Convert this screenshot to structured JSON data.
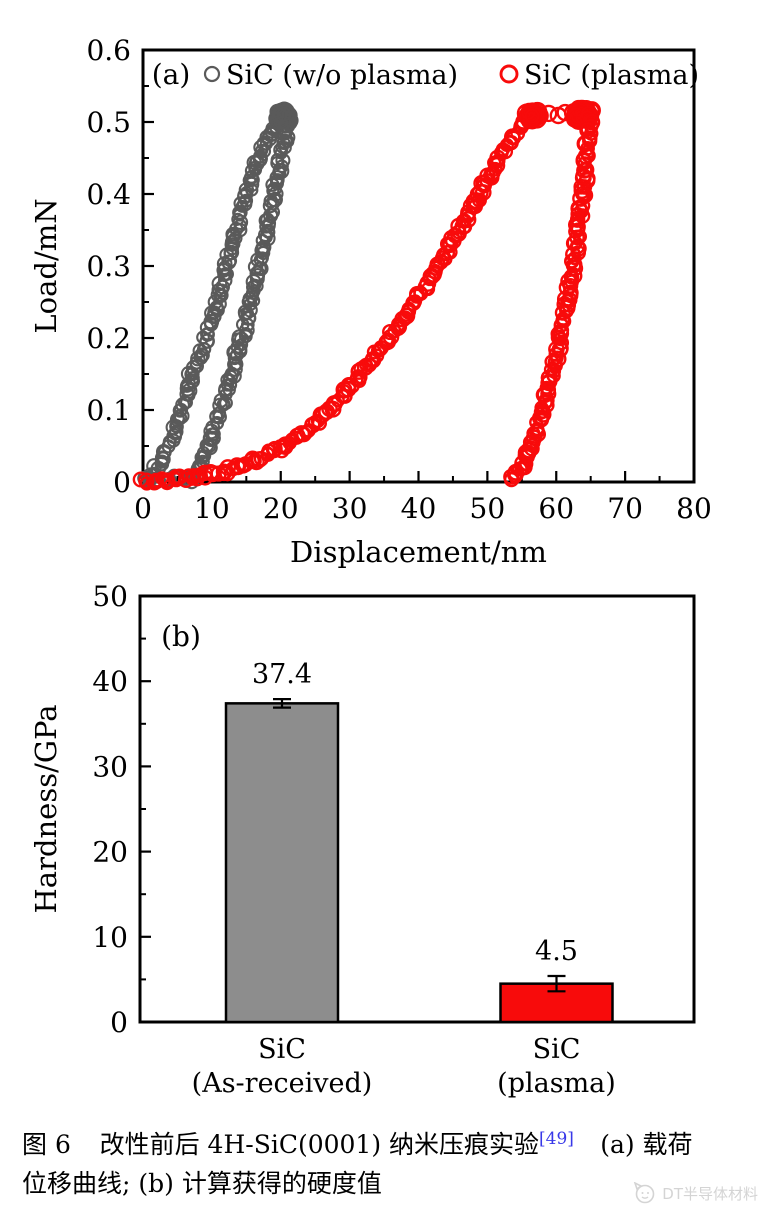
{
  "chart_data": [
    {
      "type": "scatter",
      "panel_label": "(a)",
      "xlabel": "Displacement/nm",
      "ylabel": "Load/mN",
      "xlim": [
        0,
        80
      ],
      "ylim": [
        0,
        0.6
      ],
      "grid": false,
      "legend_position": "top-inside",
      "x_axis": {
        "major_ticks": [
          0,
          10,
          20,
          30,
          40,
          50,
          60,
          70,
          80
        ],
        "labels": [
          "0",
          "10",
          "20",
          "30",
          "40",
          "50",
          "60",
          "70",
          "80"
        ],
        "minor_step": 5
      },
      "y_axis": {
        "major_ticks": [
          0,
          0.1,
          0.2,
          0.3,
          0.4,
          0.5,
          0.6
        ],
        "labels": [
          "0",
          "0.1",
          "0.2",
          "0.3",
          "0.4",
          "0.5",
          "0.6"
        ],
        "minor_step": 0.05
      },
      "series": [
        {
          "name": "SiC (w/o plasma)",
          "color": "#5a5a5a",
          "marker": "open-circle",
          "marker_r": 6,
          "marker_stroke": 2.1,
          "branches": [
            {
              "kind": "path",
              "label": "surface-approach",
              "spacing": 5.5,
              "jitter": 2.2,
              "points": [
                [
                  0.5,
                  0.003
                ],
                [
                  3,
                  0.005
                ],
                [
                  5.5,
                  0.005
                ],
                [
                  8,
                  0.007
                ]
              ]
            },
            {
              "kind": "path",
              "label": "loading",
              "spacing": 2.6,
              "jitter": 3.1,
              "points": [
                [
                  0.4,
                  0.002
                ],
                [
                  1.5,
                  0.012
                ],
                [
                  2.5,
                  0.025
                ],
                [
                  3.5,
                  0.045
                ],
                [
                  4.5,
                  0.07
                ],
                [
                  5.5,
                  0.095
                ],
                [
                  6.3,
                  0.12
                ],
                [
                  7.2,
                  0.15
                ],
                [
                  8.2,
                  0.175
                ],
                [
                  9,
                  0.195
                ],
                [
                  9.8,
                  0.22
                ],
                [
                  10.8,
                  0.25
                ],
                [
                  11.7,
                  0.285
                ],
                [
                  12.6,
                  0.315
                ],
                [
                  13.6,
                  0.35
                ],
                [
                  14.6,
                  0.385
                ],
                [
                  15.6,
                  0.415
                ],
                [
                  16.6,
                  0.445
                ],
                [
                  17.6,
                  0.47
                ],
                [
                  18.6,
                  0.49
                ],
                [
                  19.4,
                  0.503
                ]
              ]
            },
            {
              "kind": "path",
              "label": "unloading",
              "spacing": 2.6,
              "jitter": 3.1,
              "points": [
                [
                  21.2,
                  0.508
                ],
                [
                  20.6,
                  0.48
                ],
                [
                  20,
                  0.45
                ],
                [
                  19.4,
                  0.42
                ],
                [
                  18.7,
                  0.385
                ],
                [
                  18,
                  0.35
                ],
                [
                  17.2,
                  0.315
                ],
                [
                  16.4,
                  0.28
                ],
                [
                  15.5,
                  0.245
                ],
                [
                  14.6,
                  0.21
                ],
                [
                  13.7,
                  0.18
                ],
                [
                  12.8,
                  0.15
                ],
                [
                  11.9,
                  0.12
                ],
                [
                  11,
                  0.095
                ],
                [
                  10.2,
                  0.07
                ],
                [
                  9.4,
                  0.05
                ],
                [
                  8.7,
                  0.032
                ],
                [
                  8.1,
                  0.018
                ],
                [
                  7.6,
                  0.007
                ],
                [
                  7.2,
                  0.002
                ]
              ]
            },
            {
              "kind": "blob",
              "label": "peak-hold",
              "count": 75,
              "x": [
                19.2,
                21.7
              ],
              "y": [
                0.498,
                0.518
              ]
            }
          ],
          "peak_load_mN": 0.51,
          "max_displacement_nm": 21,
          "residual_displacement_nm": 7.5
        },
        {
          "name": "SiC (plasma)",
          "color": "#f80b0b",
          "marker": "open-circle",
          "marker_r": 6.4,
          "marker_stroke": 2.4,
          "branches": [
            {
              "kind": "path",
              "label": "loading",
              "spacing": 2.8,
              "jitter": 2.9,
              "points": [
                [
                  0,
                  0
                ],
                [
                  3,
                  0.002
                ],
                [
                  6,
                  0.005
                ],
                [
                  9,
                  0.009
                ],
                [
                  11,
                  0.013
                ],
                [
                  13,
                  0.018
                ],
                [
                  15,
                  0.025
                ],
                [
                  17,
                  0.033
                ],
                [
                  19,
                  0.042
                ],
                [
                  21,
                  0.053
                ],
                [
                  23,
                  0.066
                ],
                [
                  25,
                  0.082
                ],
                [
                  27,
                  0.1
                ],
                [
                  29,
                  0.12
                ],
                [
                  31,
                  0.142
                ],
                [
                  33,
                  0.165
                ],
                [
                  35,
                  0.19
                ],
                [
                  37,
                  0.215
                ],
                [
                  39,
                  0.243
                ],
                [
                  41,
                  0.272
                ],
                [
                  43,
                  0.303
                ],
                [
                  45,
                  0.335
                ],
                [
                  47,
                  0.368
                ],
                [
                  49,
                  0.402
                ],
                [
                  51,
                  0.437
                ],
                [
                  53,
                  0.47
                ],
                [
                  54.5,
                  0.49
                ],
                [
                  56,
                  0.505
                ],
                [
                  56.8,
                  0.512
                ]
              ]
            },
            {
              "kind": "blob",
              "label": "hold-start",
              "count": 48,
              "x": [
                55.5,
                57.8
              ],
              "y": [
                0.5,
                0.518
              ]
            },
            {
              "kind": "singles",
              "label": "creep-points",
              "points": [
                [
                  58.9,
                  0.512
                ],
                [
                  60.3,
                  0.509
                ],
                [
                  61.3,
                  0.513
                ]
              ]
            },
            {
              "kind": "blob",
              "label": "hold-end",
              "count": 80,
              "x": [
                62.3,
                65.3
              ],
              "y": [
                0.5,
                0.52
              ]
            },
            {
              "kind": "path",
              "label": "unloading",
              "spacing": 2.6,
              "jitter": 2.8,
              "points": [
                [
                  64.9,
                  0.505
                ],
                [
                  64.6,
                  0.47
                ],
                [
                  64.3,
                  0.44
                ],
                [
                  64,
                  0.41
                ],
                [
                  63.6,
                  0.38
                ],
                [
                  63.2,
                  0.35
                ],
                [
                  62.8,
                  0.32
                ],
                [
                  62.3,
                  0.29
                ],
                [
                  61.8,
                  0.26
                ],
                [
                  61.3,
                  0.235
                ],
                [
                  60.8,
                  0.21
                ],
                [
                  60.2,
                  0.185
                ],
                [
                  59.6,
                  0.16
                ],
                [
                  59,
                  0.135
                ],
                [
                  58.4,
                  0.112
                ],
                [
                  57.8,
                  0.09
                ],
                [
                  57.2,
                  0.072
                ],
                [
                  56.6,
                  0.055
                ],
                [
                  56,
                  0.04
                ],
                [
                  55.4,
                  0.028
                ],
                [
                  54.8,
                  0.018
                ],
                [
                  54.2,
                  0.01
                ],
                [
                  53.6,
                  0.004
                ],
                [
                  53.1,
                  0.001
                ]
              ]
            }
          ],
          "peak_load_mN": 0.51,
          "max_displacement_nm": 64.5,
          "residual_displacement_nm": 53
        }
      ]
    },
    {
      "type": "bar",
      "panel_label": "(b)",
      "xlabel": "",
      "ylabel": "Hardness/GPa",
      "ylim": [
        0,
        50
      ],
      "grid": false,
      "y_axis": {
        "major_ticks": [
          0,
          10,
          20,
          30,
          40,
          50
        ],
        "labels": [
          "0",
          "10",
          "20",
          "30",
          "40",
          "50"
        ],
        "minor_step": 5
      },
      "categories": [
        {
          "line1": "SiC",
          "line2": "(As-received)"
        },
        {
          "line1": "SiC",
          "line2": "(plasma)"
        }
      ],
      "values": [
        37.4,
        4.5
      ],
      "errors": [
        0.5,
        0.9
      ],
      "value_labels": [
        "37.4",
        "4.5"
      ],
      "bar_colors": [
        "#8d8d8d",
        "#f80b0b"
      ],
      "bar_edge_color": "#000000"
    }
  ],
  "caption": {
    "prefix": "图 6",
    "body": "改性前后 4H-SiC(0001) 纳米压痕实验",
    "reference": "[49]",
    "suffix1": "(a) 载荷",
    "suffix2": "位移曲线; (b) 计算获得的硬度值",
    "reference_color": "#3838e8"
  },
  "watermark": {
    "icon": "cat-logo",
    "text": "DT半导体材料",
    "color": "#d4d4d4"
  },
  "style_colors": {
    "axis": "#000000",
    "gray_series": "#5a5a5a",
    "red_series": "#f80b0b",
    "gray_bar": "#8d8d8d"
  }
}
